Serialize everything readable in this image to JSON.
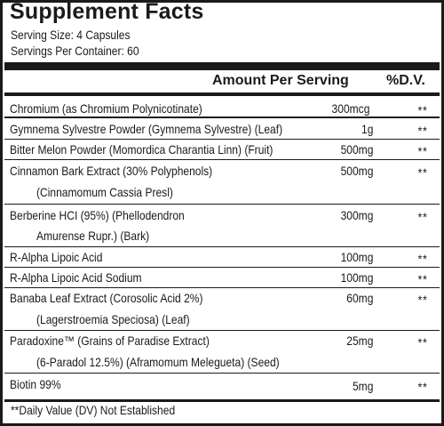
{
  "label": {
    "title": "Supplement Facts",
    "serving_size": "Serving Size: 4 Capsules",
    "servings_per_container": "Servings Per Container: 60",
    "header_amount": "Amount Per Serving",
    "header_dv": "%D.V.",
    "ingredients": [
      {
        "name_lines": [
          "Chromium (as Chromium Polynicotinate)"
        ],
        "amount": "300mcg",
        "dv": "**"
      },
      {
        "name_lines": [
          "Gymnema Sylvestre Powder (Gymnema Sylvestre) (Leaf)"
        ],
        "amount": "1g",
        "dv": "**"
      },
      {
        "name_lines": [
          "Bitter Melon Powder (Momordica Charantia Linn) (Fruit)"
        ],
        "amount": "500mg",
        "dv": "**"
      },
      {
        "name_lines": [
          "Cinnamon Bark Extract (30% Polyphenols)",
          "(Cinnamomum Cassia Presl)"
        ],
        "amount": "500mg",
        "dv": "**"
      },
      {
        "name_lines": [
          "Berberine HCI (95%) (Phellodendron",
          "Amurense Rupr.) (Bark)"
        ],
        "amount": "300mg",
        "dv": "**"
      },
      {
        "name_lines": [
          "R-Alpha Lipoic Acid"
        ],
        "amount": "100mg",
        "dv": "**"
      },
      {
        "name_lines": [
          "R-Alpha Lipoic Acid Sodium"
        ],
        "amount": "100mg",
        "dv": "**"
      },
      {
        "name_lines": [
          "Banaba Leaf Extract (Corosolic Acid 2%)",
          "(Lagerstroemia Speciosa) (Leaf)"
        ],
        "amount": "60mg",
        "dv": "**"
      },
      {
        "name_lines": [
          "Paradoxine™ (Grains of Paradise Extract)",
          "(6-Paradol 12.5%) (Aframomum Melegueta) (Seed)"
        ],
        "amount": "25mg",
        "dv": "**"
      },
      {
        "name_lines": [
          "Biotin 99%"
        ],
        "amount": "5mg",
        "dv": "**"
      }
    ],
    "footnote": "**Daily Value (DV) Not Established"
  }
}
